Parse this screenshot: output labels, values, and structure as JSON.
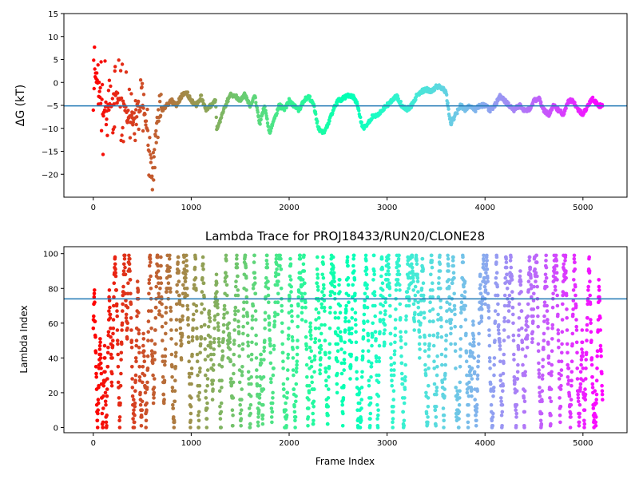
{
  "colors": {
    "background": "#ffffff",
    "axes": "#000000",
    "hline": "#1f77b4",
    "colormap": "rainbow"
  },
  "chart_data": [
    {
      "type": "scatter",
      "title": "",
      "xlabel": "",
      "ylabel": "ΔG (kT)",
      "xlim": [
        -300,
        5450
      ],
      "ylim": [
        -25,
        15
      ],
      "xticks": [
        0,
        1000,
        2000,
        3000,
        4000,
        5000
      ],
      "yticks": [
        -20,
        -15,
        -10,
        -5,
        0,
        5,
        10,
        15
      ],
      "colormap": "rainbow (frame 0 red → frame 5200 violet)",
      "hline": -5.1,
      "grid": false,
      "legend": "none",
      "keypoints": {
        "x": [
          0,
          20,
          50,
          100,
          150,
          200,
          250,
          300,
          350,
          400,
          450,
          500,
          550,
          580,
          600,
          650,
          700,
          750,
          800,
          850,
          900,
          950,
          1000,
          1050,
          1100,
          1150,
          1200,
          1250,
          1260,
          1300,
          1350,
          1400,
          1450,
          1500,
          1550,
          1600,
          1650,
          1700,
          1750,
          1800,
          1850,
          1900,
          1950,
          2000,
          2050,
          2100,
          2150,
          2200,
          2250,
          2300,
          2350,
          2400,
          2450,
          2500,
          2550,
          2600,
          2650,
          2700,
          2750,
          2800,
          2850,
          2900,
          2950,
          3000,
          3050,
          3100,
          3150,
          3200,
          3250,
          3300,
          3350,
          3400,
          3450,
          3500,
          3550,
          3600,
          3650,
          3700,
          3750,
          3800,
          3850,
          3900,
          3950,
          4000,
          4050,
          4100,
          4150,
          4200,
          4250,
          4300,
          4350,
          4400,
          4450,
          4500,
          4550,
          4600,
          4650,
          4700,
          4750,
          4800,
          4850,
          4900,
          4950,
          5000,
          5050,
          5100,
          5150,
          5200
        ],
        "y": [
          -5,
          2,
          0,
          -6,
          -5,
          -4,
          -3,
          -5,
          -7,
          -8,
          -6,
          -4,
          -10,
          -18,
          -20,
          -8,
          -6,
          -5,
          -4,
          -5,
          -3,
          -2,
          -4,
          -5,
          -3,
          -6,
          -5,
          -4,
          -10,
          -8,
          -5,
          -2.5,
          -3,
          -4,
          -2.5,
          -5,
          -3,
          -9,
          -5,
          -11,
          -8,
          -5,
          -6,
          -4,
          -5,
          -6,
          -4,
          -3,
          -5,
          -10,
          -11,
          -9,
          -6,
          -4,
          -3.5,
          -3,
          -3,
          -5,
          -10,
          -9,
          -7.5,
          -7,
          -6,
          -5,
          -4,
          -3,
          -5,
          -6,
          -5,
          -3,
          -2,
          -1.5,
          -2,
          -1,
          -1,
          -2,
          -9,
          -7,
          -5,
          -6,
          -5,
          -6,
          -5,
          -5,
          -6,
          -5,
          -3,
          -4,
          -5,
          -6,
          -5,
          -6,
          -6,
          -4,
          -3.5,
          -6,
          -7,
          -5,
          -6,
          -7,
          -4,
          -4,
          -6,
          -7,
          -5,
          -3.5,
          -5,
          -5
        ]
      },
      "sampling": "dense per-frame sampling along keypoints; early frames (0–700) spread widely"
    },
    {
      "type": "scatter",
      "title": "Lambda Trace for PROJ18433/RUN20/CLONE28",
      "xlabel": "Frame Index",
      "ylabel": "Lambda Index",
      "xlim": [
        -300,
        5450
      ],
      "ylim": [
        -3,
        104
      ],
      "xticks": [
        0,
        1000,
        2000,
        3000,
        4000,
        5000
      ],
      "yticks": [
        0,
        20,
        40,
        60,
        80,
        100
      ],
      "colormap": "rainbow (frame 0 red → frame 5200 violet)",
      "hline": 74,
      "grid": false,
      "legend": "none",
      "range_x": [
        0,
        5200
      ],
      "range_y": [
        0,
        99
      ],
      "sampling": "one point per frame, lambda index distributed over 0–99 in vertical sweeps"
    }
  ]
}
